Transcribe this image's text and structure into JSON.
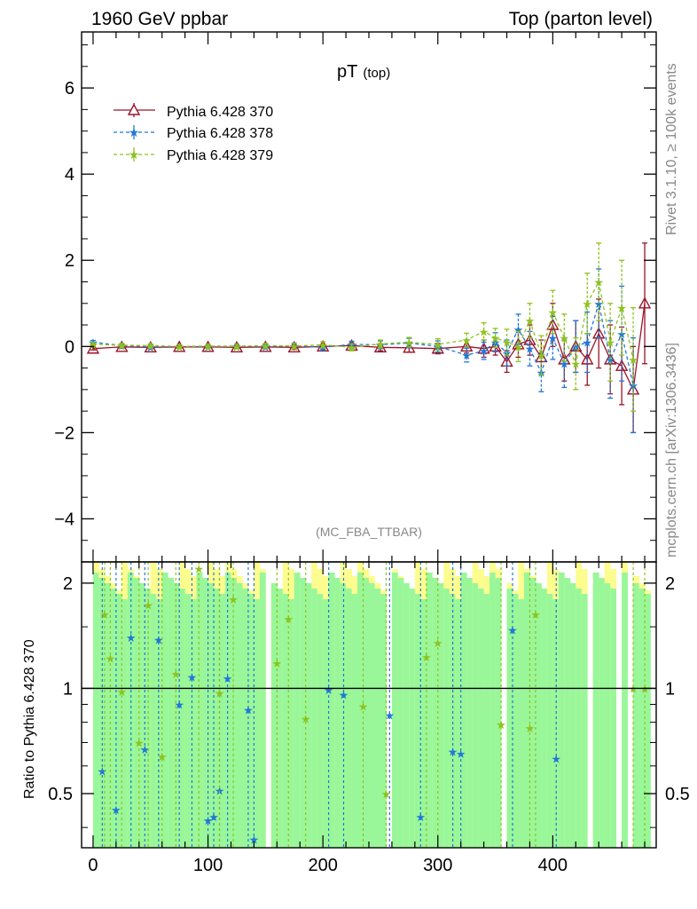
{
  "header": {
    "left": "1960 GeV ppbar",
    "right": "Top (parton level)"
  },
  "side_labels": {
    "rivet": "Rivet 3.1.10, ≥ 100k events",
    "mcplots": "mcplots.cern.ch [arXiv:1306.3436]"
  },
  "chart_data": {
    "type": "line",
    "title": "pT",
    "title_suffix": "(top)",
    "analysis_tag": "(MC_FBA_TTBAR)",
    "xlim": [
      -10,
      490
    ],
    "ylim": [
      -5.0,
      7.3
    ],
    "grid": false,
    "legend_position": "top-left",
    "x_ticks": [
      "0",
      "100",
      "200",
      "300",
      "400"
    ],
    "y_ticks": [
      "−4",
      "−2",
      "0",
      "2",
      "4",
      "6"
    ],
    "series": [
      {
        "name": "Pythia 6.428 370",
        "color": "#9a1428",
        "marker": "open-triangle",
        "dash": "solid",
        "x": [
          0,
          25,
          50,
          75,
          100,
          125,
          150,
          175,
          200,
          225,
          250,
          275,
          300,
          325,
          340,
          350,
          360,
          370,
          380,
          390,
          400,
          410,
          420,
          430,
          440,
          450,
          460,
          470,
          480
        ],
        "y": [
          -0.05,
          -0.01,
          -0.02,
          -0.01,
          -0.01,
          -0.02,
          -0.01,
          -0.02,
          0.0,
          0.02,
          -0.02,
          -0.03,
          -0.05,
          0.0,
          -0.05,
          0.0,
          -0.35,
          0.05,
          0.15,
          -0.25,
          0.5,
          -0.3,
          0.0,
          -0.3,
          0.3,
          -0.3,
          -0.45,
          -1.0,
          1.0
        ],
        "err": [
          0.03,
          0.03,
          0.03,
          0.03,
          0.03,
          0.03,
          0.04,
          0.05,
          0.05,
          0.06,
          0.08,
          0.1,
          0.12,
          0.15,
          0.2,
          0.2,
          0.25,
          0.3,
          0.35,
          0.4,
          0.5,
          0.5,
          0.6,
          0.6,
          0.8,
          0.8,
          0.9,
          1.0,
          1.4
        ]
      },
      {
        "name": "Pythia 6.428 378",
        "color": "#1f78d8",
        "marker": "star",
        "dash": "dashed",
        "x": [
          0,
          25,
          50,
          75,
          100,
          125,
          150,
          175,
          200,
          225,
          250,
          275,
          300,
          325,
          340,
          350,
          360,
          370,
          380,
          390,
          400,
          410,
          420,
          430,
          440,
          450,
          460,
          470
        ],
        "y": [
          0.1,
          0.02,
          -0.01,
          0.0,
          0.0,
          0.01,
          0.0,
          0.02,
          -0.02,
          0.05,
          0.04,
          0.08,
          0.0,
          -0.2,
          -0.1,
          0.1,
          -0.15,
          0.4,
          -0.05,
          -0.6,
          0.2,
          -0.4,
          0.0,
          0.1,
          1.0,
          -0.3,
          0.3,
          -0.9
        ],
        "err": [
          0.04,
          0.04,
          0.04,
          0.04,
          0.04,
          0.04,
          0.05,
          0.06,
          0.06,
          0.07,
          0.09,
          0.11,
          0.13,
          0.16,
          0.2,
          0.22,
          0.3,
          0.35,
          0.4,
          0.45,
          0.5,
          0.55,
          0.6,
          0.7,
          0.8,
          0.9,
          1.1,
          1.1
        ]
      },
      {
        "name": "Pythia 6.428 379",
        "color": "#8ec21f",
        "marker": "star",
        "dash": "dashed",
        "x": [
          0,
          25,
          50,
          75,
          100,
          125,
          150,
          175,
          200,
          225,
          250,
          275,
          300,
          325,
          340,
          350,
          360,
          370,
          380,
          390,
          400,
          410,
          420,
          430,
          440,
          450,
          460,
          470
        ],
        "y": [
          0.05,
          0.03,
          0.02,
          0.0,
          0.01,
          0.0,
          0.02,
          0.01,
          0.04,
          -0.02,
          0.06,
          0.1,
          0.05,
          0.15,
          0.35,
          0.2,
          0.1,
          0.0,
          0.6,
          -0.2,
          0.8,
          0.2,
          -0.4,
          1.0,
          1.5,
          0.1,
          0.9,
          -0.3
        ],
        "err": [
          0.04,
          0.04,
          0.04,
          0.04,
          0.04,
          0.05,
          0.05,
          0.06,
          0.07,
          0.08,
          0.09,
          0.11,
          0.13,
          0.16,
          0.2,
          0.22,
          0.3,
          0.35,
          0.4,
          0.45,
          0.5,
          0.55,
          0.6,
          0.7,
          0.9,
          0.9,
          1.1,
          1.2
        ]
      }
    ],
    "ratio_panel": {
      "ylabel": "Ratio to Pythia 6.428 370",
      "ylim": [
        0.35,
        2.3
      ],
      "y_ticks": [
        "0.5",
        "1",
        "2"
      ],
      "reference": 1.0,
      "band_colors": {
        "inner": "#99f799",
        "outer": "#fdfd8f"
      },
      "series": [
        {
          "name": "Pythia 6.428 378",
          "color": "#1f78d8",
          "x": [
            8,
            20,
            33,
            45,
            57,
            75,
            86,
            100,
            105,
            110,
            117,
            135,
            140,
            205,
            218,
            258,
            285,
            313,
            320,
            365,
            403
          ],
          "y": [
            0.58,
            0.45,
            1.4,
            0.67,
            1.38,
            0.9,
            1.08,
            0.42,
            0.43,
            0.51,
            1.07,
            0.87,
            0.37,
            0.99,
            0.96,
            0.84,
            0.43,
            0.66,
            0.65,
            1.47,
            0.63
          ]
        },
        {
          "name": "Pythia 6.428 379",
          "color": "#8ec21f",
          "x": [
            10,
            15,
            25,
            40,
            48,
            60,
            72,
            92,
            110,
            122,
            160,
            170,
            185,
            235,
            255,
            290,
            300,
            355,
            380,
            385,
            470,
            480
          ],
          "y": [
            1.63,
            1.22,
            0.98,
            0.7,
            1.73,
            0.64,
            1.1,
            2.2,
            0.97,
            1.8,
            1.18,
            1.58,
            0.82,
            0.89,
            0.5,
            1.23,
            1.35,
            0.79,
            0.77,
            1.63,
            1.0,
            1.0
          ]
        }
      ]
    }
  }
}
